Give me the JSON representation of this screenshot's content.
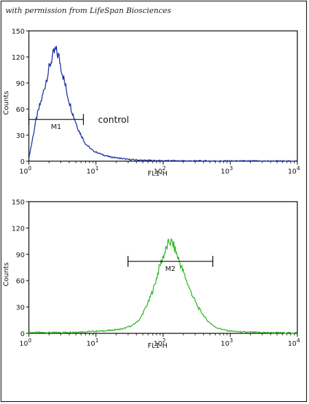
{
  "credit": "with permission from LifeSpan Biosciences",
  "chart_data": [
    {
      "type": "line",
      "color": "#1a2fa0",
      "xlabel": "FL1-H",
      "ylabel": "Counts",
      "xscale": "log",
      "xlim": [
        1,
        10000
      ],
      "ylim": [
        0,
        150
      ],
      "yticks": [
        0,
        30,
        60,
        90,
        120,
        150
      ],
      "xticks": [
        {
          "base": "10",
          "exp": "0"
        },
        {
          "base": "10",
          "exp": "1"
        },
        {
          "base": "10",
          "exp": "2"
        },
        {
          "base": "10",
          "exp": "3"
        },
        {
          "base": "10",
          "exp": "4"
        }
      ],
      "series": [
        {
          "x": [
            1.0,
            1.3,
            1.6,
            1.9,
            2.2,
            2.5,
            2.8,
            3.2,
            3.8,
            4.5,
            5.5,
            7.0,
            9.0,
            12,
            16,
            20,
            30,
            50,
            100,
            300,
            1000,
            10000
          ],
          "values": [
            3,
            50,
            75,
            100,
            118,
            128,
            120,
            100,
            75,
            55,
            36,
            20,
            12,
            8,
            5,
            4,
            2,
            1,
            0.5,
            0.3,
            0.2,
            0
          ]
        }
      ],
      "marker": {
        "label": "M1",
        "x_start": 1.0,
        "x_end": 6.5,
        "y": 48
      },
      "annotation": {
        "text": "control",
        "x": 10,
        "y": 48
      }
    },
    {
      "type": "line",
      "color": "#33b82a",
      "xlabel": "FL1-H",
      "ylabel": "Counts",
      "xscale": "log",
      "xlim": [
        1,
        10000
      ],
      "ylim": [
        0,
        150
      ],
      "yticks": [
        0,
        30,
        60,
        90,
        120,
        150
      ],
      "xticks": [
        {
          "base": "10",
          "exp": "0"
        },
        {
          "base": "10",
          "exp": "1"
        },
        {
          "base": "10",
          "exp": "2"
        },
        {
          "base": "10",
          "exp": "3"
        },
        {
          "base": "10",
          "exp": "4"
        }
      ],
      "series": [
        {
          "x": [
            1.0,
            3,
            8,
            15,
            25,
            35,
            45,
            60,
            75,
            90,
            110,
            125,
            140,
            160,
            200,
            250,
            330,
            450,
            600,
            900,
            1500,
            3000,
            10000
          ],
          "values": [
            1,
            1,
            2,
            3,
            5,
            9,
            16,
            35,
            55,
            78,
            95,
            105,
            102,
            90,
            70,
            50,
            30,
            15,
            7,
            3,
            1.5,
            1,
            0.5
          ]
        }
      ],
      "marker": {
        "label": "M2",
        "x_start": 30,
        "x_end": 550,
        "y": 82
      }
    }
  ]
}
